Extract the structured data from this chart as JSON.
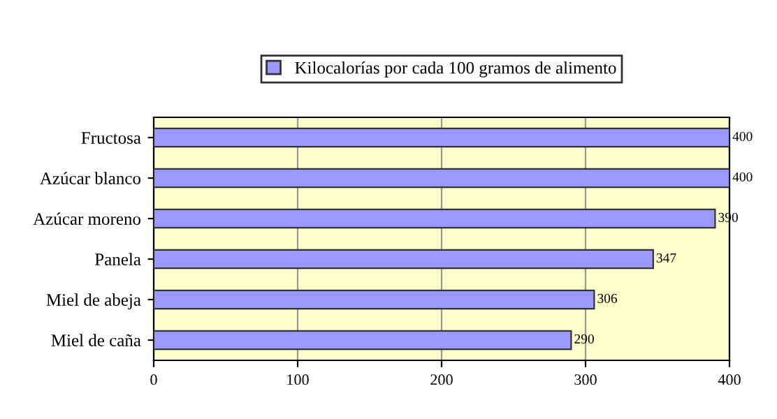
{
  "chart_data": {
    "type": "bar",
    "orientation": "horizontal",
    "categories": [
      "Fructosa",
      "Azúcar blanco",
      "Azúcar moreno",
      "Panela",
      "Miel de abeja",
      "Miel de caña"
    ],
    "series": [
      {
        "name": "Kilocalorías por cada 100 gramos de alimento",
        "color": "#9999ff",
        "values": [
          400,
          400,
          390,
          347,
          306,
          290
        ]
      }
    ],
    "xlim": [
      0,
      400
    ],
    "xticks": [
      0,
      100,
      200,
      300,
      400
    ],
    "grid": "x",
    "legend": "top",
    "data_labels": true
  }
}
